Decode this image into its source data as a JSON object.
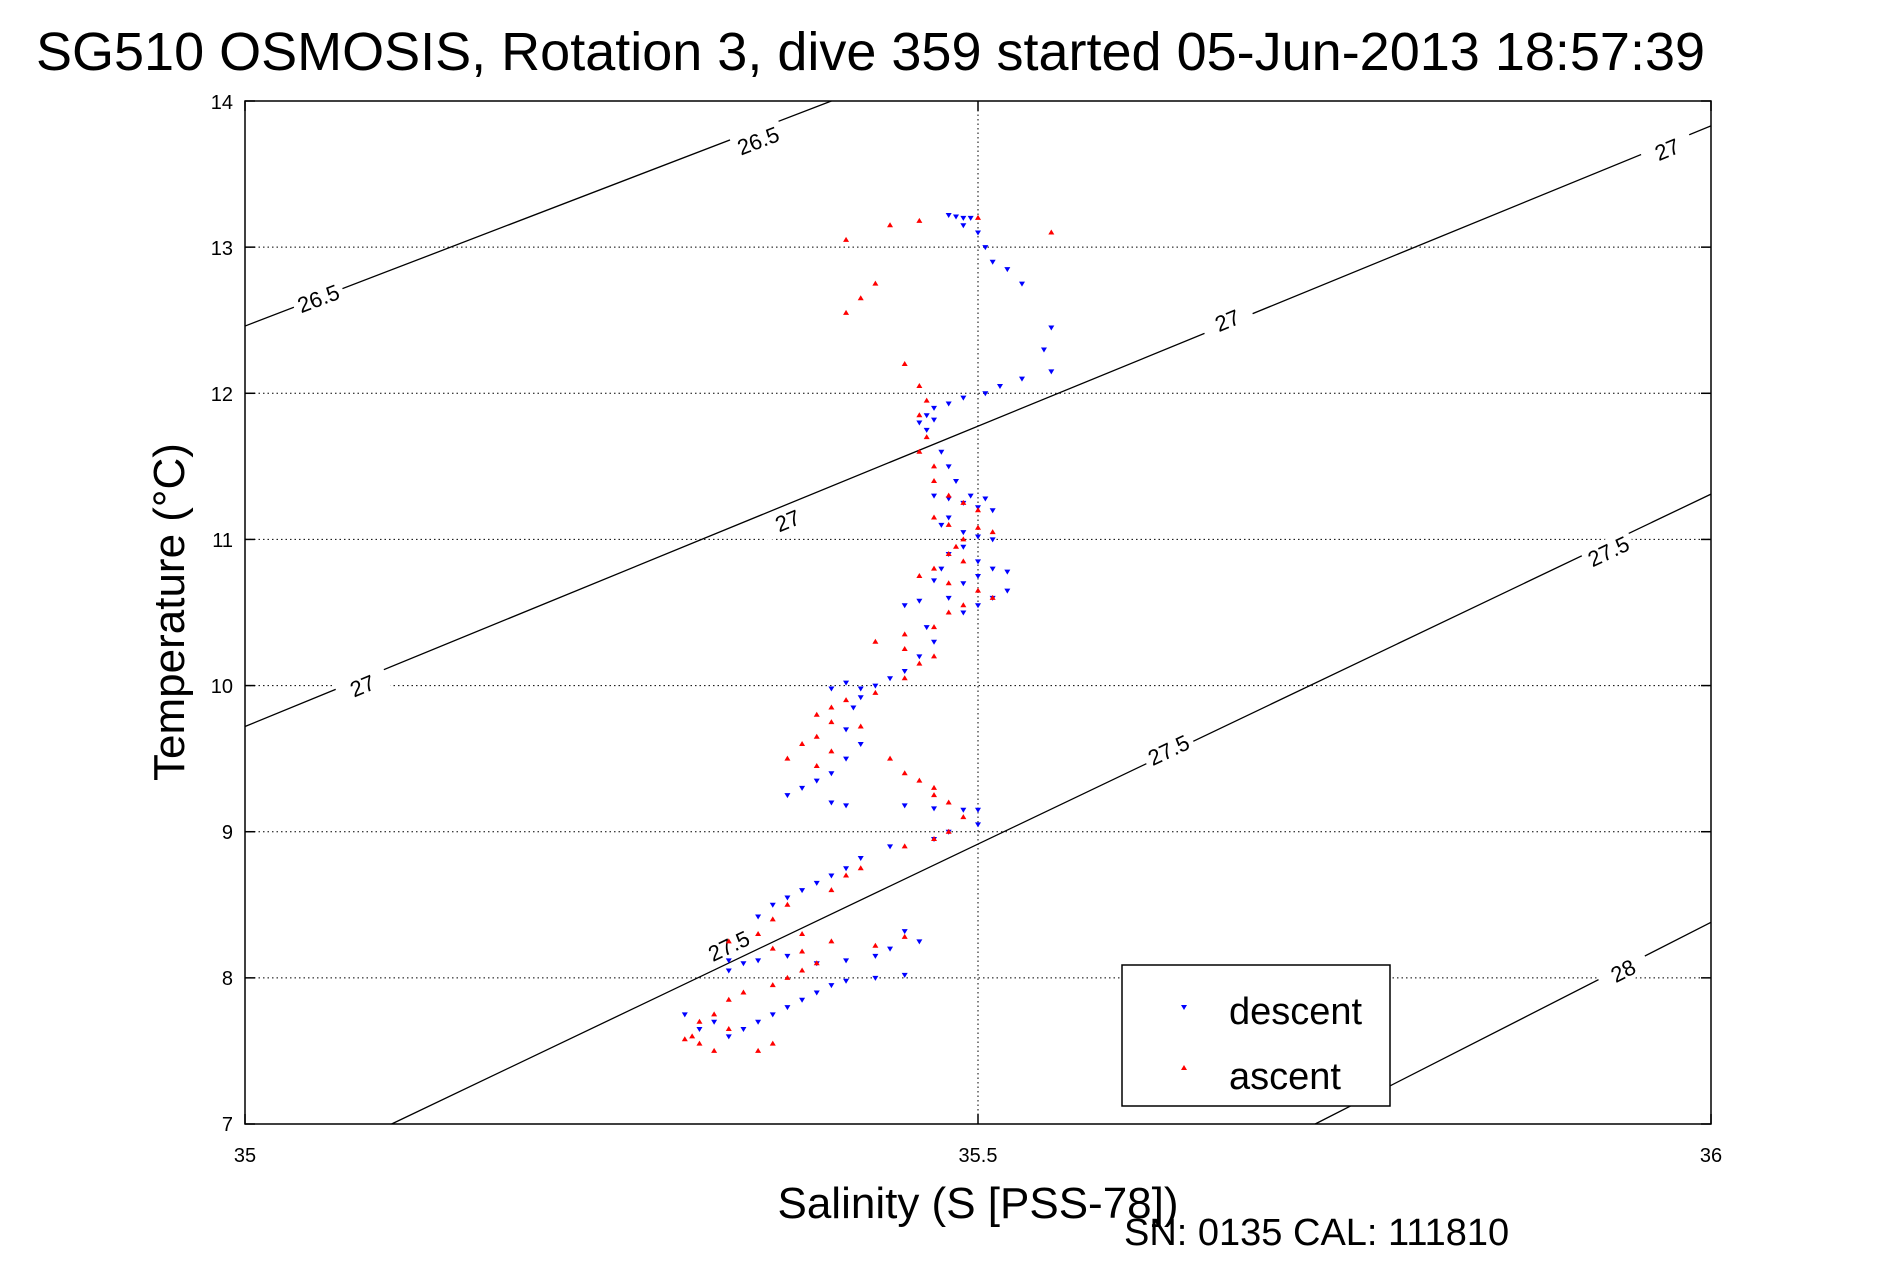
{
  "chart_data": {
    "type": "scatter",
    "title": "SG510 OSMOSIS, Rotation 3, dive 359 started 05-Jun-2013 18:57:39",
    "xlabel": "Salinity (S [PSS-78])",
    "ylabel": "Temperature (°C)",
    "xlim": [
      35,
      36
    ],
    "ylim": [
      7,
      14
    ],
    "xticks": [
      "35",
      "35.5",
      "36"
    ],
    "yticks": [
      "7",
      "8",
      "9",
      "10",
      "11",
      "12",
      "13",
      "14"
    ],
    "grid": true,
    "legend_position": "bottom-right",
    "footer": "SN: 0135  CAL: 111810",
    "density_contours": [
      {
        "label": "26.5",
        "points": [
          [
            35,
            12.46
          ],
          [
            35.4,
            14.0
          ]
        ],
        "labels": [
          [
            35.05,
            12.65
          ],
          [
            35.35,
            13.73
          ]
        ]
      },
      {
        "label": "27",
        "points": [
          [
            35,
            9.72
          ],
          [
            36,
            13.83
          ]
        ],
        "labels": [
          [
            35.08,
            10.0
          ],
          [
            35.37,
            11.13
          ],
          [
            35.67,
            12.5
          ],
          [
            35.97,
            13.67
          ]
        ]
      },
      {
        "label": "27.5",
        "points": [
          [
            35.1,
            7.0
          ],
          [
            36,
            11.31
          ]
        ],
        "labels": [
          [
            35.33,
            8.22
          ],
          [
            35.63,
            9.56
          ],
          [
            35.93,
            10.92
          ]
        ]
      },
      {
        "label": "28",
        "points": [
          [
            35.73,
            7.0
          ],
          [
            36,
            8.38
          ]
        ],
        "labels": [
          [
            35.94,
            8.05
          ]
        ]
      }
    ],
    "series": [
      {
        "name": "descent",
        "color": "#0000ff",
        "marker": "triangle-down",
        "points": [
          [
            35.48,
            13.22
          ],
          [
            35.485,
            13.21
          ],
          [
            35.49,
            13.2
          ],
          [
            35.495,
            13.2
          ],
          [
            35.49,
            13.15
          ],
          [
            35.5,
            13.1
          ],
          [
            35.505,
            13.0
          ],
          [
            35.51,
            12.9
          ],
          [
            35.52,
            12.85
          ],
          [
            35.53,
            12.75
          ],
          [
            35.55,
            12.45
          ],
          [
            35.545,
            12.3
          ],
          [
            35.55,
            12.15
          ],
          [
            35.53,
            12.1
          ],
          [
            35.515,
            12.05
          ],
          [
            35.505,
            12.0
          ],
          [
            35.49,
            11.97
          ],
          [
            35.48,
            11.93
          ],
          [
            35.47,
            11.9
          ],
          [
            35.465,
            11.85
          ],
          [
            35.46,
            11.8
          ],
          [
            35.465,
            11.75
          ],
          [
            35.47,
            11.82
          ],
          [
            35.475,
            11.6
          ],
          [
            35.48,
            11.5
          ],
          [
            35.485,
            11.4
          ],
          [
            35.47,
            11.3
          ],
          [
            35.48,
            11.28
          ],
          [
            35.49,
            11.25
          ],
          [
            35.5,
            11.22
          ],
          [
            35.51,
            11.2
          ],
          [
            35.505,
            11.28
          ],
          [
            35.495,
            11.3
          ],
          [
            35.48,
            11.15
          ],
          [
            35.475,
            11.1
          ],
          [
            35.49,
            11.05
          ],
          [
            35.5,
            11.02
          ],
          [
            35.51,
            11.0
          ],
          [
            35.49,
            10.95
          ],
          [
            35.48,
            10.9
          ],
          [
            35.5,
            10.85
          ],
          [
            35.51,
            10.8
          ],
          [
            35.52,
            10.78
          ],
          [
            35.5,
            10.75
          ],
          [
            35.49,
            10.7
          ],
          [
            35.475,
            10.8
          ],
          [
            35.47,
            10.72
          ],
          [
            35.52,
            10.65
          ],
          [
            35.51,
            10.6
          ],
          [
            35.5,
            10.55
          ],
          [
            35.49,
            10.5
          ],
          [
            35.48,
            10.6
          ],
          [
            35.46,
            10.58
          ],
          [
            35.45,
            10.55
          ],
          [
            35.465,
            10.4
          ],
          [
            35.47,
            10.3
          ],
          [
            35.46,
            10.2
          ],
          [
            35.45,
            10.1
          ],
          [
            35.44,
            10.05
          ],
          [
            35.43,
            10.0
          ],
          [
            35.42,
            9.98
          ],
          [
            35.41,
            10.02
          ],
          [
            35.4,
            9.98
          ],
          [
            35.42,
            9.92
          ],
          [
            35.415,
            9.85
          ],
          [
            35.41,
            9.7
          ],
          [
            35.42,
            9.6
          ],
          [
            35.41,
            9.5
          ],
          [
            35.4,
            9.4
          ],
          [
            35.39,
            9.35
          ],
          [
            35.38,
            9.3
          ],
          [
            35.37,
            9.25
          ],
          [
            35.4,
            9.2
          ],
          [
            35.41,
            9.18
          ],
          [
            35.45,
            9.18
          ],
          [
            35.47,
            9.16
          ],
          [
            35.49,
            9.15
          ],
          [
            35.5,
            9.15
          ],
          [
            35.5,
            9.05
          ],
          [
            35.48,
            9.0
          ],
          [
            35.47,
            8.95
          ],
          [
            35.44,
            8.9
          ],
          [
            35.42,
            8.82
          ],
          [
            35.41,
            8.75
          ],
          [
            35.4,
            8.7
          ],
          [
            35.39,
            8.65
          ],
          [
            35.38,
            8.6
          ],
          [
            35.37,
            8.55
          ],
          [
            35.36,
            8.5
          ],
          [
            35.35,
            8.42
          ],
          [
            35.45,
            8.32
          ],
          [
            35.46,
            8.25
          ],
          [
            35.44,
            8.2
          ],
          [
            35.43,
            8.15
          ],
          [
            35.41,
            8.12
          ],
          [
            35.39,
            8.1
          ],
          [
            35.37,
            8.15
          ],
          [
            35.35,
            8.12
          ],
          [
            35.34,
            8.1
          ],
          [
            35.33,
            8.05
          ],
          [
            35.45,
            8.02
          ],
          [
            35.43,
            8.0
          ],
          [
            35.41,
            7.98
          ],
          [
            35.4,
            7.95
          ],
          [
            35.39,
            7.9
          ],
          [
            35.38,
            7.85
          ],
          [
            35.37,
            7.8
          ],
          [
            35.36,
            7.75
          ],
          [
            35.35,
            7.7
          ],
          [
            35.34,
            7.65
          ],
          [
            35.33,
            7.6
          ],
          [
            35.32,
            7.7
          ],
          [
            35.33,
            8.12
          ],
          [
            35.3,
            7.75
          ],
          [
            35.31,
            7.65
          ]
        ]
      },
      {
        "name": "ascent",
        "color": "#ff0000",
        "marker": "triangle-up",
        "points": [
          [
            35.41,
            13.05
          ],
          [
            35.44,
            13.15
          ],
          [
            35.46,
            13.18
          ],
          [
            35.5,
            13.2
          ],
          [
            35.55,
            13.1
          ],
          [
            35.43,
            12.75
          ],
          [
            35.42,
            12.65
          ],
          [
            35.41,
            12.55
          ],
          [
            35.45,
            12.2
          ],
          [
            35.46,
            12.05
          ],
          [
            35.465,
            11.95
          ],
          [
            35.46,
            11.85
          ],
          [
            35.465,
            11.7
          ],
          [
            35.46,
            11.6
          ],
          [
            35.47,
            11.5
          ],
          [
            35.47,
            11.4
          ],
          [
            35.48,
            11.3
          ],
          [
            35.49,
            11.25
          ],
          [
            35.5,
            11.2
          ],
          [
            35.47,
            11.15
          ],
          [
            35.48,
            11.1
          ],
          [
            35.5,
            11.08
          ],
          [
            35.51,
            11.05
          ],
          [
            35.49,
            11.0
          ],
          [
            35.485,
            10.95
          ],
          [
            35.48,
            10.9
          ],
          [
            35.49,
            10.85
          ],
          [
            35.47,
            10.8
          ],
          [
            35.46,
            10.75
          ],
          [
            35.48,
            10.7
          ],
          [
            35.5,
            10.65
          ],
          [
            35.51,
            10.6
          ],
          [
            35.49,
            10.55
          ],
          [
            35.48,
            10.5
          ],
          [
            35.47,
            10.4
          ],
          [
            35.45,
            10.35
          ],
          [
            35.43,
            10.3
          ],
          [
            35.45,
            10.25
          ],
          [
            35.47,
            10.2
          ],
          [
            35.46,
            10.15
          ],
          [
            35.45,
            10.05
          ],
          [
            35.43,
            9.95
          ],
          [
            35.41,
            9.9
          ],
          [
            35.4,
            9.85
          ],
          [
            35.39,
            9.8
          ],
          [
            35.4,
            9.75
          ],
          [
            35.42,
            9.72
          ],
          [
            35.39,
            9.65
          ],
          [
            35.38,
            9.6
          ],
          [
            35.4,
            9.55
          ],
          [
            35.37,
            9.5
          ],
          [
            35.39,
            9.45
          ],
          [
            35.44,
            9.5
          ],
          [
            35.45,
            9.4
          ],
          [
            35.46,
            9.35
          ],
          [
            35.47,
            9.3
          ],
          [
            35.47,
            9.25
          ],
          [
            35.48,
            9.2
          ],
          [
            35.49,
            9.1
          ],
          [
            35.48,
            9.0
          ],
          [
            35.47,
            8.95
          ],
          [
            35.45,
            8.9
          ],
          [
            35.42,
            8.75
          ],
          [
            35.41,
            8.7
          ],
          [
            35.4,
            8.6
          ],
          [
            35.37,
            8.5
          ],
          [
            35.36,
            8.4
          ],
          [
            35.35,
            8.3
          ],
          [
            35.36,
            8.2
          ],
          [
            35.38,
            8.3
          ],
          [
            35.4,
            8.25
          ],
          [
            35.43,
            8.22
          ],
          [
            35.45,
            8.28
          ],
          [
            35.39,
            8.1
          ],
          [
            35.38,
            8.05
          ],
          [
            35.37,
            8.0
          ],
          [
            35.36,
            7.95
          ],
          [
            35.34,
            7.9
          ],
          [
            35.33,
            7.85
          ],
          [
            35.32,
            7.75
          ],
          [
            35.31,
            7.7
          ],
          [
            35.305,
            7.6
          ],
          [
            35.3,
            7.58
          ],
          [
            35.31,
            7.55
          ],
          [
            35.32,
            7.5
          ],
          [
            35.35,
            7.5
          ],
          [
            35.36,
            7.55
          ],
          [
            35.33,
            8.25
          ],
          [
            35.33,
            7.65
          ],
          [
            35.38,
            8.18
          ]
        ]
      }
    ]
  }
}
